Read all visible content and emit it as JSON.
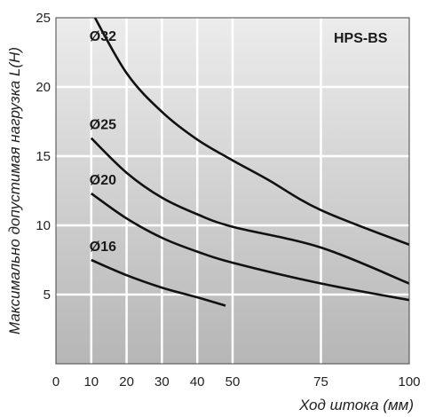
{
  "chart_data": {
    "type": "line",
    "badge": "HPS-BS",
    "ylabel": "Максимально допустимая нагрузка L(H)",
    "xlabel": "Ход штока (мм)",
    "x_ticks": [
      0,
      10,
      20,
      30,
      40,
      50,
      75,
      100
    ],
    "y_ticks": [
      5,
      10,
      15,
      20,
      25
    ],
    "xlim": [
      0,
      100
    ],
    "ylim": [
      0,
      25
    ],
    "grid": true,
    "series": [
      {
        "name": "Ø32",
        "points": [
          [
            10,
            25.5
          ],
          [
            20,
            21.0
          ],
          [
            30,
            18.2
          ],
          [
            40,
            16.2
          ],
          [
            50,
            14.7
          ],
          [
            60,
            13.3
          ],
          [
            75,
            11.1
          ],
          [
            100,
            8.6
          ]
        ]
      },
      {
        "name": "Ø25",
        "points": [
          [
            10,
            16.3
          ],
          [
            20,
            13.8
          ],
          [
            30,
            12.0
          ],
          [
            40,
            10.8
          ],
          [
            50,
            9.9
          ],
          [
            75,
            8.4
          ],
          [
            100,
            5.8
          ]
        ]
      },
      {
        "name": "Ø20",
        "points": [
          [
            10,
            12.3
          ],
          [
            20,
            10.5
          ],
          [
            30,
            9.1
          ],
          [
            40,
            8.1
          ],
          [
            50,
            7.3
          ],
          [
            75,
            5.8
          ],
          [
            100,
            4.6
          ]
        ]
      },
      {
        "name": "Ø16",
        "points": [
          [
            10,
            7.5
          ],
          [
            20,
            6.4
          ],
          [
            30,
            5.5
          ],
          [
            40,
            4.8
          ],
          [
            48,
            4.2
          ]
        ]
      }
    ],
    "colors": {
      "line": "#111111",
      "grid": "#ffffff",
      "bg_top": "#ececec",
      "bg_bottom": "#b8b8b8"
    }
  }
}
